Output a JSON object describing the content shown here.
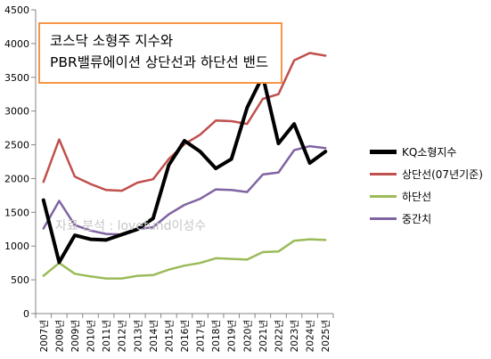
{
  "chart_data": {
    "type": "line",
    "title_lines": [
      "코스닥 소형주 지수와",
      "PBR밸류에이션 상단선과 하단선 밴드"
    ],
    "watermark": "자료 분석 : lovefund이성수",
    "categories": [
      "2007년",
      "2008년",
      "2009년",
      "2010년",
      "2011년",
      "2012년",
      "2013년",
      "2014년",
      "2015년",
      "2016년",
      "2017년",
      "2018년",
      "2019년",
      "2020년",
      "2021년",
      "2022년",
      "2023년",
      "2024년",
      "2025년"
    ],
    "x_points": [
      0,
      1,
      2,
      3,
      4,
      5,
      6,
      7,
      8,
      9,
      10,
      11,
      12,
      13,
      14,
      15,
      16,
      17,
      18,
      18.5,
      19.5,
      20,
      20.5
    ],
    "ylim": [
      0,
      4500
    ],
    "yticks": [
      0,
      500,
      1000,
      1500,
      2000,
      2500,
      3000,
      3500,
      4000,
      4500
    ],
    "grid": false,
    "legend_position": "right",
    "series": [
      {
        "name": "KQ소형지수",
        "color": "#000000",
        "width": 4,
        "points": [
          [
            0,
            1680
          ],
          [
            1,
            760
          ],
          [
            2,
            1160
          ],
          [
            3,
            1100
          ],
          [
            4,
            1090
          ],
          [
            5,
            1170
          ],
          [
            6,
            1250
          ],
          [
            7,
            1410
          ],
          [
            8,
            2200
          ],
          [
            9,
            2560
          ],
          [
            10,
            2400
          ],
          [
            11,
            2150
          ],
          [
            12,
            2290
          ],
          [
            13,
            3050
          ],
          [
            14,
            3520
          ],
          [
            15,
            2520
          ],
          [
            16,
            2810
          ],
          [
            17,
            2230
          ],
          [
            18,
            2400
          ]
        ]
      },
      {
        "name": "상단선(07년기준)",
        "color": "#c0504d",
        "width": 2.5,
        "points": [
          [
            0,
            1950
          ],
          [
            1,
            2580
          ],
          [
            2,
            2030
          ],
          [
            3,
            1920
          ],
          [
            4,
            1830
          ],
          [
            5,
            1820
          ],
          [
            6,
            1940
          ],
          [
            7,
            1990
          ],
          [
            8,
            2290
          ],
          [
            9,
            2510
          ],
          [
            10,
            2650
          ],
          [
            11,
            2860
          ],
          [
            12,
            2850
          ],
          [
            13,
            2810
          ],
          [
            14,
            3180
          ],
          [
            15,
            3250
          ],
          [
            16,
            3750
          ],
          [
            17,
            3860
          ],
          [
            18,
            3820
          ]
        ]
      },
      {
        "name": "하단선",
        "color": "#9bbb59",
        "width": 2.5,
        "points": [
          [
            0,
            560
          ],
          [
            1,
            750
          ],
          [
            2,
            590
          ],
          [
            3,
            550
          ],
          [
            4,
            520
          ],
          [
            5,
            520
          ],
          [
            6,
            560
          ],
          [
            7,
            570
          ],
          [
            8,
            650
          ],
          [
            9,
            710
          ],
          [
            10,
            750
          ],
          [
            11,
            820
          ],
          [
            12,
            810
          ],
          [
            13,
            800
          ],
          [
            14,
            910
          ],
          [
            15,
            920
          ],
          [
            16,
            1080
          ],
          [
            17,
            1100
          ],
          [
            18,
            1090
          ]
        ]
      },
      {
        "name": "중간치",
        "color": "#8064a2",
        "width": 2.5,
        "points": [
          [
            0,
            1260
          ],
          [
            1,
            1670
          ],
          [
            2,
            1310
          ],
          [
            3,
            1230
          ],
          [
            4,
            1180
          ],
          [
            5,
            1170
          ],
          [
            6,
            1250
          ],
          [
            7,
            1280
          ],
          [
            8,
            1470
          ],
          [
            9,
            1610
          ],
          [
            10,
            1700
          ],
          [
            11,
            1840
          ],
          [
            12,
            1830
          ],
          [
            13,
            1800
          ],
          [
            14,
            2060
          ],
          [
            15,
            2090
          ],
          [
            16,
            2420
          ],
          [
            17,
            2480
          ],
          [
            18,
            2450
          ]
        ]
      }
    ]
  }
}
